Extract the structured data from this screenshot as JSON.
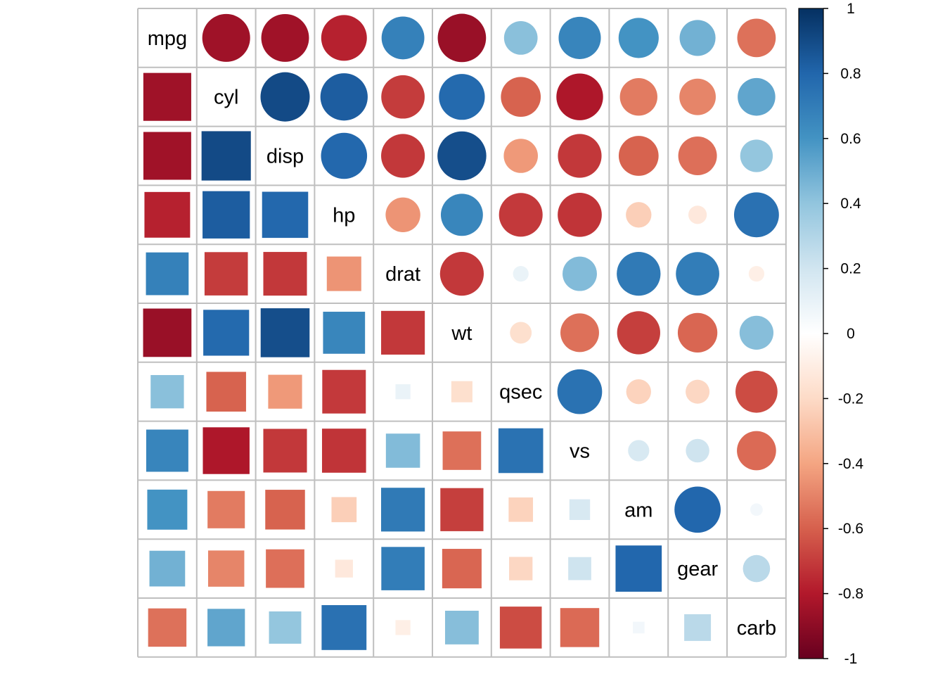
{
  "chart_data": {
    "type": "heatmap",
    "title": "",
    "variables": [
      "mpg",
      "cyl",
      "disp",
      "hp",
      "drat",
      "wt",
      "qsec",
      "vs",
      "am",
      "gear",
      "carb"
    ],
    "matrix": [
      [
        1.0,
        -0.852,
        -0.848,
        -0.776,
        0.681,
        -0.868,
        0.419,
        0.664,
        0.6,
        0.48,
        -0.551
      ],
      [
        -0.852,
        1.0,
        0.902,
        0.832,
        -0.7,
        0.782,
        -0.591,
        -0.811,
        -0.523,
        -0.493,
        0.527
      ],
      [
        -0.848,
        0.902,
        1.0,
        0.791,
        -0.71,
        0.888,
        -0.434,
        -0.71,
        -0.591,
        -0.556,
        0.395
      ],
      [
        -0.776,
        0.832,
        0.791,
        1.0,
        -0.449,
        0.659,
        -0.708,
        -0.723,
        -0.243,
        -0.126,
        0.75
      ],
      [
        0.681,
        -0.7,
        -0.71,
        -0.449,
        1.0,
        -0.712,
        0.091,
        0.44,
        0.713,
        0.7,
        -0.091
      ],
      [
        -0.868,
        0.782,
        0.888,
        0.659,
        -0.712,
        1.0,
        -0.175,
        -0.555,
        -0.692,
        -0.583,
        0.428
      ],
      [
        0.419,
        -0.591,
        -0.434,
        -0.708,
        0.091,
        -0.175,
        1.0,
        0.745,
        -0.23,
        -0.213,
        -0.656
      ],
      [
        0.664,
        -0.811,
        -0.71,
        -0.723,
        0.44,
        -0.555,
        0.745,
        1.0,
        0.168,
        0.206,
        -0.57
      ],
      [
        0.6,
        -0.523,
        -0.591,
        -0.243,
        0.713,
        -0.692,
        -0.23,
        0.168,
        1.0,
        0.794,
        0.058
      ],
      [
        0.48,
        -0.493,
        -0.556,
        -0.126,
        0.7,
        -0.583,
        -0.213,
        0.206,
        0.794,
        1.0,
        0.274
      ],
      [
        -0.551,
        0.527,
        0.395,
        0.75,
        -0.091,
        0.428,
        -0.656,
        -0.57,
        0.058,
        0.274,
        1.0
      ]
    ],
    "upper_shape": "circle",
    "lower_shape": "square",
    "diagonal": "variable name",
    "color_scale": {
      "range": [
        -1,
        1
      ],
      "ticks": [
        1,
        0.8,
        0.6,
        0.4,
        0.2,
        0,
        -0.2,
        -0.4,
        -0.6,
        -0.8,
        -1
      ],
      "tick_labels": [
        "1",
        "0.8",
        "0.6",
        "0.4",
        "0.2",
        "0",
        "-0.2",
        "-0.4",
        "-0.6",
        "-0.8",
        "-1"
      ],
      "colors_neg_to_pos": [
        "#67001F",
        "#B2182B",
        "#D6604D",
        "#F4A582",
        "#FDDBC7",
        "#FFFFFF",
        "#D1E5F0",
        "#92C5DE",
        "#4393C3",
        "#2166AC",
        "#053061"
      ]
    },
    "grid": true,
    "legend_position": "right"
  }
}
